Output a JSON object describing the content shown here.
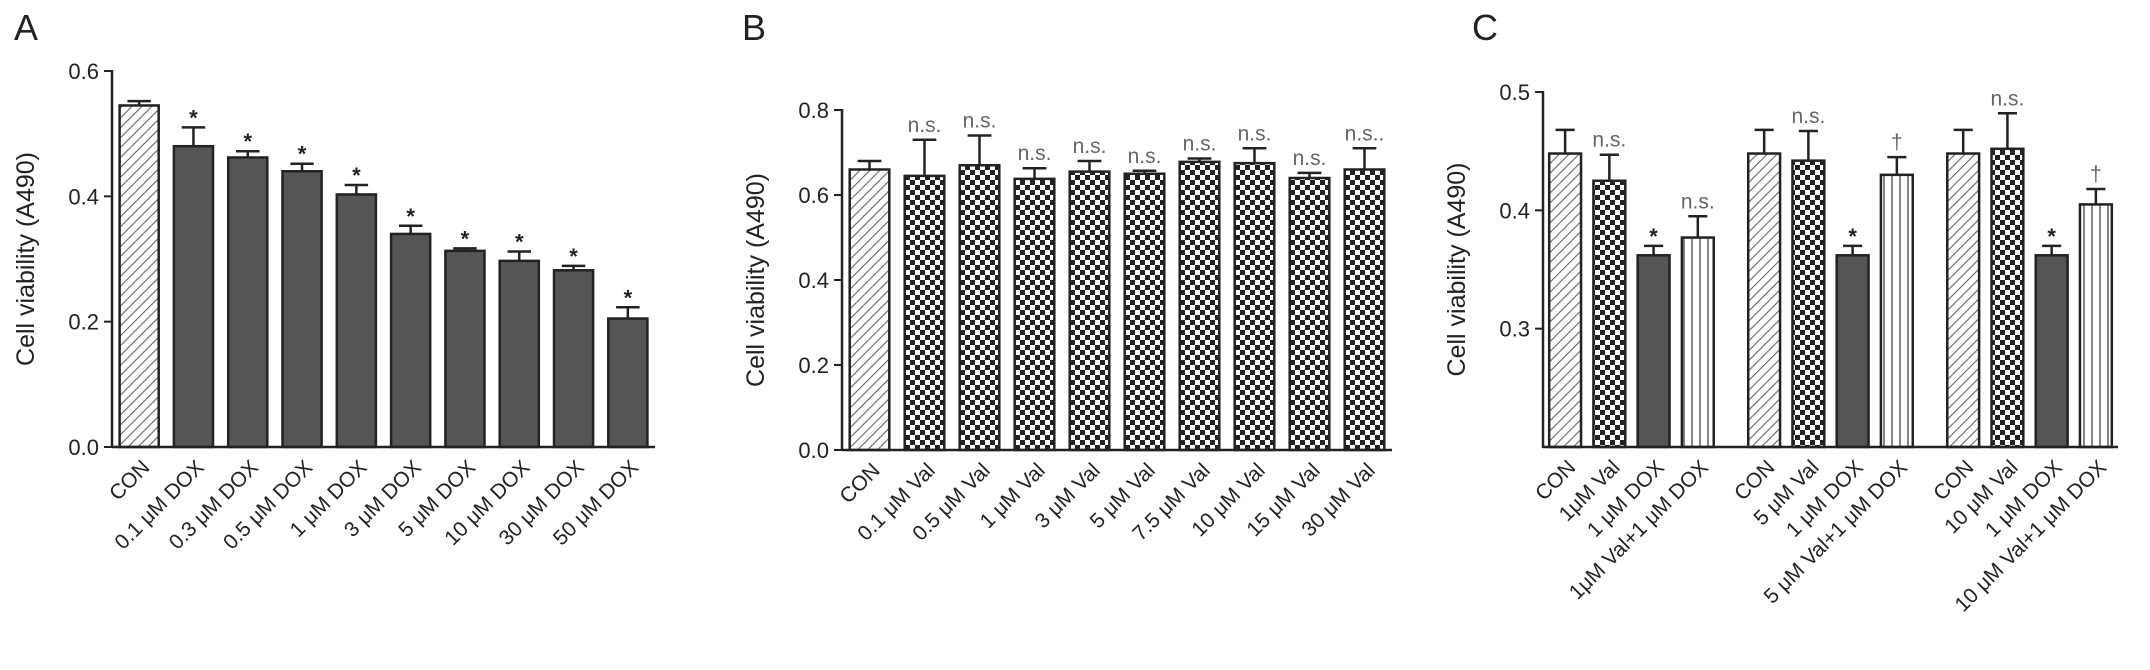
{
  "chart_data": [
    {
      "type": "bar",
      "panel": "A",
      "ylabel": "Cell viability (A490)",
      "categories": [
        "CON",
        "0.1 μM DOX",
        "0.3 μM DOX",
        "0.5 μM DOX",
        "1 μM DOX",
        "3 μM DOX",
        "5 μM DOX",
        "10 μM DOX",
        "30 μM DOX",
        "50 μM DOX"
      ],
      "values": [
        0.545,
        0.48,
        0.462,
        0.44,
        0.403,
        0.34,
        0.313,
        0.297,
        0.282,
        0.205
      ],
      "errors": [
        0.007,
        0.03,
        0.01,
        0.012,
        0.015,
        0.013,
        0.004,
        0.015,
        0.007,
        0.018
      ],
      "annotations": [
        null,
        "*",
        "*",
        "*",
        "*",
        "*",
        "*",
        "*",
        "*",
        "*"
      ],
      "patterns": [
        "hatch",
        "solid",
        "solid",
        "solid",
        "solid",
        "solid",
        "solid",
        "solid",
        "solid",
        "solid"
      ],
      "ylim": [
        0,
        0.6
      ],
      "yticks": [
        {
          "value": 0,
          "label": "0.0"
        },
        0.2,
        0.4,
        0.6
      ]
    },
    {
      "type": "bar",
      "panel": "B",
      "ylabel": "Cell viability (A490)",
      "categories": [
        "CON",
        "0.1 μM Val",
        "0.5 μM Val",
        "1 μM Val",
        "3 μM Val",
        "5 μM Val",
        "7.5 μM Val",
        "10 μM Val",
        "15 μM Val",
        "30 μM Val"
      ],
      "values": [
        0.66,
        0.645,
        0.67,
        0.638,
        0.655,
        0.65,
        0.678,
        0.675,
        0.64,
        0.66
      ],
      "errors": [
        0.02,
        0.085,
        0.07,
        0.025,
        0.025,
        0.007,
        0.008,
        0.035,
        0.012,
        0.05
      ],
      "annotations": [
        null,
        "n.s.",
        "n.s.",
        "n.s.",
        "n.s.",
        "n.s.",
        "n.s.",
        "n.s.",
        "n.s.",
        "n.s.."
      ],
      "patterns": [
        "hatch",
        "check",
        "check",
        "check",
        "check",
        "check",
        "check",
        "check",
        "check",
        "check"
      ],
      "ylim": [
        0,
        0.8
      ],
      "yticks": [
        {
          "value": 0,
          "label": "0.0"
        },
        0.2,
        0.4,
        0.6,
        0.8
      ]
    },
    {
      "type": "bar",
      "panel": "C",
      "ylabel": "Cell viability (A490)",
      "categories": [
        "CON",
        "1μM Val",
        "1 μM DOX",
        "1μM Val+1 μM DOX",
        "CON",
        "5 μM Val",
        "1 μM DOX",
        "5 μM Val+1 μM DOX",
        "CON",
        "10 μM Val",
        "1 μM DOX",
        "10 μM Val+1 μM DOX"
      ],
      "values": [
        0.448,
        0.425,
        0.362,
        0.377,
        0.448,
        0.442,
        0.362,
        0.43,
        0.448,
        0.452,
        0.362,
        0.405
      ],
      "errors": [
        0.02,
        0.022,
        0.008,
        0.018,
        0.02,
        0.025,
        0.008,
        0.015,
        0.02,
        0.03,
        0.008,
        0.013
      ],
      "annotations": [
        null,
        "n.s.",
        "*",
        "n.s.",
        null,
        "n.s.",
        "*",
        "†",
        null,
        "n.s.",
        "*",
        "†"
      ],
      "patterns": [
        "hatch",
        "check",
        "solid",
        "vstripe",
        "hatch",
        "check",
        "solid",
        "vstripe",
        "hatch",
        "check",
        "solid",
        "vstripe"
      ],
      "ylim": [
        0.2,
        0.5
      ],
      "yticks": [
        0.3,
        0.4,
        0.5
      ]
    }
  ]
}
